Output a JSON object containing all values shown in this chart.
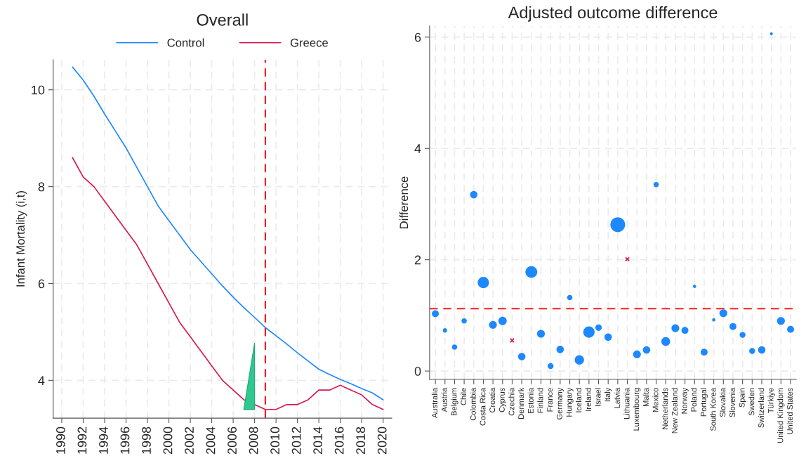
{
  "chart_data": [
    {
      "type": "line",
      "title": "Overall",
      "ylabel": "Infant Mortality (i,t)",
      "x": [
        1991,
        1992,
        1993,
        1994,
        1995,
        1996,
        1997,
        1998,
        1999,
        2000,
        2001,
        2002,
        2003,
        2004,
        2005,
        2006,
        2007,
        2008,
        2009,
        2010,
        2011,
        2012,
        2013,
        2014,
        2015,
        2016,
        2017,
        2018,
        2019,
        2020
      ],
      "series": [
        {
          "name": "Control",
          "color": "#1e88ff",
          "values": [
            10.47,
            10.2,
            9.87,
            9.5,
            9.15,
            8.8,
            8.4,
            8.0,
            7.6,
            7.3,
            7.0,
            6.7,
            6.45,
            6.2,
            5.95,
            5.72,
            5.5,
            5.3,
            5.09,
            4.92,
            4.75,
            4.57,
            4.4,
            4.23,
            4.12,
            4.02,
            3.93,
            3.83,
            3.74,
            3.6
          ]
        },
        {
          "name": "Greece",
          "color": "#d6194f",
          "values": [
            8.6,
            8.2,
            8.0,
            7.7,
            7.4,
            7.1,
            6.8,
            6.4,
            6.0,
            5.6,
            5.2,
            4.9,
            4.6,
            4.3,
            4.0,
            3.8,
            3.6,
            3.5,
            3.4,
            3.4,
            3.5,
            3.5,
            3.6,
            3.8,
            3.8,
            3.9,
            3.8,
            3.7,
            3.5,
            3.4
          ]
        }
      ],
      "xlim": [
        1989.2,
        2020.8
      ],
      "xticks": [
        1990,
        1992,
        1994,
        1996,
        1998,
        2000,
        2002,
        2004,
        2006,
        2008,
        2010,
        2012,
        2014,
        2016,
        2018,
        2020
      ],
      "ylim": [
        3.22,
        10.62
      ],
      "yticks": [
        4,
        6,
        8,
        10
      ],
      "ref_lines": [
        {
          "axis": "x",
          "value": 2009,
          "color": "#ff0000",
          "line_style": "dashed"
        }
      ],
      "grid": true,
      "legend": "top",
      "line_style": "solid",
      "marker": "none"
    },
    {
      "type": "bubble",
      "title": "Adjusted outcome difference",
      "ylabel": "Difference",
      "categories": [
        "Australia",
        "Austria",
        "Belgium",
        "Chile",
        "Colombia",
        "Costa Rica",
        "Croatia",
        "Cyprus",
        "Czechia",
        "Denmark",
        "Estonia",
        "Finland",
        "France",
        "Germany",
        "Hungary",
        "Iceland",
        "Ireland",
        "Israel",
        "Italy",
        "Latvia",
        "Lithuania",
        "Luxembourg",
        "Malta",
        "Mexico",
        "Netherlands",
        "New Zealand",
        "Norway",
        "Poland",
        "Portugal",
        "South Korea",
        "Slovakia",
        "Slovenia",
        "Spain",
        "Sweden",
        "Switzerland",
        "Türkiye",
        "United Kingdom",
        "United States"
      ],
      "series": [
        {
          "type": "bubble",
          "color": "#1e88ff",
          "marker": "circle",
          "values": [
            1.03,
            0.73,
            0.43,
            0.9,
            3.17,
            1.59,
            0.83,
            0.9,
            null,
            0.26,
            1.78,
            0.67,
            0.09,
            0.39,
            1.32,
            0.2,
            0.7,
            0.78,
            0.61,
            2.63,
            null,
            0.3,
            0.38,
            3.35,
            0.53,
            0.77,
            0.73,
            1.52,
            0.34,
            0.92,
            1.04,
            0.8,
            0.65,
            0.36,
            0.38,
            6.06,
            0.9,
            0.75
          ],
          "sizes": [
            0.22,
            0.09,
            0.13,
            0.13,
            0.25,
            0.59,
            0.28,
            0.32,
            null,
            0.25,
            0.64,
            0.28,
            0.16,
            0.25,
            0.13,
            0.4,
            0.59,
            0.19,
            0.25,
            1,
            null,
            0.28,
            0.25,
            0.13,
            0.36,
            0.28,
            0.22,
            0.05,
            0.22,
            0.05,
            0.28,
            0.22,
            0.16,
            0.16,
            0.25,
            0.04,
            0.28,
            0.22
          ]
        },
        {
          "type": "scatter",
          "color": "#d6194f",
          "marker": "cross",
          "values": [
            null,
            null,
            null,
            null,
            null,
            null,
            null,
            null,
            0.55,
            null,
            null,
            null,
            null,
            null,
            null,
            null,
            null,
            null,
            null,
            null,
            2.01,
            null,
            null,
            null,
            null,
            null,
            null,
            null,
            null,
            null,
            null,
            null,
            null,
            null,
            null,
            null,
            null,
            null
          ]
        }
      ],
      "ylim": [
        -0.15,
        6.2
      ],
      "yticks": [
        0,
        2,
        4,
        6
      ],
      "ref_lines": [
        {
          "axis": "y",
          "value": 1.12,
          "color": "#ff0000",
          "line_style": "dashed"
        }
      ],
      "grid": true,
      "legend": false
    }
  ]
}
